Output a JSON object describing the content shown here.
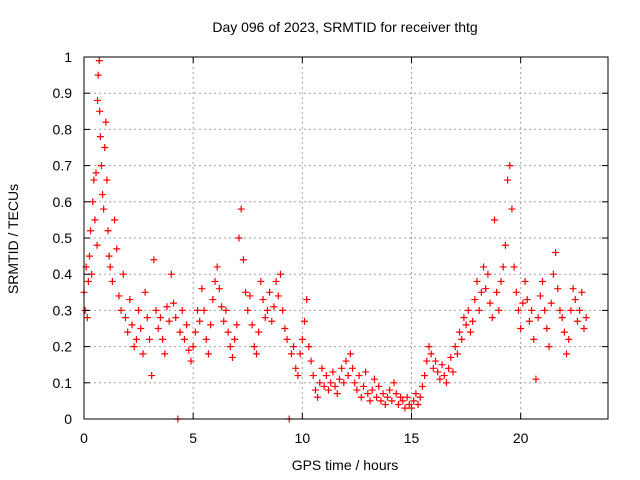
{
  "chart_data": {
    "type": "scatter",
    "title": "Day 096 of 2023, SRMTID for receiver thtg",
    "xlabel": "GPS time / hours",
    "ylabel": "SRMTID / TECUs",
    "xlim": [
      0,
      24
    ],
    "ylim": [
      0,
      1
    ],
    "xticks": [
      0,
      5,
      10,
      15,
      20
    ],
    "yticks": [
      0,
      0.1,
      0.2,
      0.3,
      0.4,
      0.5,
      0.6,
      0.7,
      0.8,
      0.9,
      1
    ],
    "xtick_labels": [
      "0",
      "5",
      "10",
      "15",
      "20"
    ],
    "ytick_labels": [
      "0",
      "0.1",
      "0.2",
      "0.3",
      "0.4",
      "0.5",
      "0.6",
      "0.7",
      "0.8",
      "0.9",
      "1"
    ],
    "grid": true,
    "marker": "+",
    "color": "#ff0000",
    "series": [
      {
        "name": "SRMTID",
        "points": [
          [
            0.0,
            0.35
          ],
          [
            0.05,
            0.3
          ],
          [
            0.1,
            0.42
          ],
          [
            0.15,
            0.28
          ],
          [
            0.2,
            0.38
          ],
          [
            0.25,
            0.45
          ],
          [
            0.3,
            0.52
          ],
          [
            0.35,
            0.4
          ],
          [
            0.4,
            0.6
          ],
          [
            0.45,
            0.66
          ],
          [
            0.5,
            0.55
          ],
          [
            0.55,
            0.68
          ],
          [
            0.6,
            0.48
          ],
          [
            0.62,
            0.88
          ],
          [
            0.65,
            0.95
          ],
          [
            0.7,
            0.99
          ],
          [
            0.72,
            0.85
          ],
          [
            0.75,
            0.78
          ],
          [
            0.8,
            0.7
          ],
          [
            0.85,
            0.62
          ],
          [
            0.9,
            0.58
          ],
          [
            0.95,
            0.75
          ],
          [
            1.0,
            0.82
          ],
          [
            1.05,
            0.66
          ],
          [
            1.1,
            0.52
          ],
          [
            1.15,
            0.45
          ],
          [
            1.2,
            0.42
          ],
          [
            1.3,
            0.38
          ],
          [
            1.4,
            0.55
          ],
          [
            1.5,
            0.47
          ],
          [
            1.6,
            0.34
          ],
          [
            1.7,
            0.3
          ],
          [
            1.8,
            0.4
          ],
          [
            1.9,
            0.28
          ],
          [
            2.0,
            0.24
          ],
          [
            2.1,
            0.33
          ],
          [
            2.2,
            0.26
          ],
          [
            2.3,
            0.2
          ],
          [
            2.4,
            0.22
          ],
          [
            2.5,
            0.3
          ],
          [
            2.6,
            0.25
          ],
          [
            2.7,
            0.18
          ],
          [
            2.8,
            0.35
          ],
          [
            2.9,
            0.28
          ],
          [
            3.0,
            0.22
          ],
          [
            3.1,
            0.12
          ],
          [
            3.2,
            0.44
          ],
          [
            3.3,
            0.3
          ],
          [
            3.4,
            0.25
          ],
          [
            3.5,
            0.28
          ],
          [
            3.6,
            0.22
          ],
          [
            3.7,
            0.18
          ],
          [
            3.8,
            0.31
          ],
          [
            3.9,
            0.27
          ],
          [
            4.0,
            0.4
          ],
          [
            4.1,
            0.32
          ],
          [
            4.2,
            0.28
          ],
          [
            4.3,
            0.0
          ],
          [
            4.4,
            0.24
          ],
          [
            4.5,
            0.3
          ],
          [
            4.6,
            0.22
          ],
          [
            4.7,
            0.26
          ],
          [
            4.8,
            0.19
          ],
          [
            4.9,
            0.16
          ],
          [
            5.0,
            0.2
          ],
          [
            5.1,
            0.24
          ],
          [
            5.2,
            0.3
          ],
          [
            5.3,
            0.27
          ],
          [
            5.4,
            0.36
          ],
          [
            5.5,
            0.3
          ],
          [
            5.6,
            0.22
          ],
          [
            5.7,
            0.18
          ],
          [
            5.8,
            0.26
          ],
          [
            5.9,
            0.33
          ],
          [
            6.0,
            0.38
          ],
          [
            6.1,
            0.42
          ],
          [
            6.2,
            0.36
          ],
          [
            6.3,
            0.31
          ],
          [
            6.4,
            0.27
          ],
          [
            6.5,
            0.3
          ],
          [
            6.6,
            0.24
          ],
          [
            6.7,
            0.2
          ],
          [
            6.8,
            0.17
          ],
          [
            6.9,
            0.22
          ],
          [
            7.0,
            0.26
          ],
          [
            7.1,
            0.5
          ],
          [
            7.2,
            0.58
          ],
          [
            7.3,
            0.44
          ],
          [
            7.4,
            0.35
          ],
          [
            7.5,
            0.3
          ],
          [
            7.6,
            0.34
          ],
          [
            7.7,
            0.26
          ],
          [
            7.8,
            0.2
          ],
          [
            7.9,
            0.18
          ],
          [
            8.0,
            0.24
          ],
          [
            8.1,
            0.38
          ],
          [
            8.2,
            0.33
          ],
          [
            8.3,
            0.28
          ],
          [
            8.4,
            0.3
          ],
          [
            8.5,
            0.35
          ],
          [
            8.6,
            0.27
          ],
          [
            8.7,
            0.31
          ],
          [
            8.8,
            0.38
          ],
          [
            8.9,
            0.34
          ],
          [
            9.0,
            0.4
          ],
          [
            9.1,
            0.3
          ],
          [
            9.2,
            0.25
          ],
          [
            9.3,
            0.22
          ],
          [
            9.4,
            0.0
          ],
          [
            9.5,
            0.18
          ],
          [
            9.6,
            0.2
          ],
          [
            9.7,
            0.14
          ],
          [
            9.8,
            0.12
          ],
          [
            9.9,
            0.18
          ],
          [
            10.0,
            0.22
          ],
          [
            10.1,
            0.27
          ],
          [
            10.2,
            0.33
          ],
          [
            10.3,
            0.2
          ],
          [
            10.4,
            0.16
          ],
          [
            10.5,
            0.12
          ],
          [
            10.6,
            0.08
          ],
          [
            10.7,
            0.06
          ],
          [
            10.8,
            0.1
          ],
          [
            10.9,
            0.14
          ],
          [
            11.0,
            0.09
          ],
          [
            11.1,
            0.12
          ],
          [
            11.2,
            0.08
          ],
          [
            11.3,
            0.1
          ],
          [
            11.4,
            0.13
          ],
          [
            11.5,
            0.09
          ],
          [
            11.6,
            0.07
          ],
          [
            11.7,
            0.11
          ],
          [
            11.8,
            0.14
          ],
          [
            11.9,
            0.1
          ],
          [
            12.0,
            0.16
          ],
          [
            12.1,
            0.12
          ],
          [
            12.2,
            0.18
          ],
          [
            12.3,
            0.14
          ],
          [
            12.4,
            0.1
          ],
          [
            12.5,
            0.08
          ],
          [
            12.6,
            0.12
          ],
          [
            12.7,
            0.06
          ],
          [
            12.8,
            0.09
          ],
          [
            12.9,
            0.13
          ],
          [
            13.0,
            0.07
          ],
          [
            13.1,
            0.05
          ],
          [
            13.2,
            0.08
          ],
          [
            13.3,
            0.11
          ],
          [
            13.4,
            0.06
          ],
          [
            13.5,
            0.09
          ],
          [
            13.6,
            0.05
          ],
          [
            13.7,
            0.07
          ],
          [
            13.8,
            0.04
          ],
          [
            13.9,
            0.06
          ],
          [
            14.0,
            0.08
          ],
          [
            14.1,
            0.05
          ],
          [
            14.2,
            0.1
          ],
          [
            14.3,
            0.07
          ],
          [
            14.4,
            0.04
          ],
          [
            14.5,
            0.06
          ],
          [
            14.6,
            0.05
          ],
          [
            14.7,
            0.03
          ],
          [
            14.8,
            0.06
          ],
          [
            14.9,
            0.04
          ],
          [
            15.0,
            0.03
          ],
          [
            15.1,
            0.05
          ],
          [
            15.2,
            0.07
          ],
          [
            15.3,
            0.04
          ],
          [
            15.4,
            0.06
          ],
          [
            15.5,
            0.09
          ],
          [
            15.6,
            0.12
          ],
          [
            15.7,
            0.16
          ],
          [
            15.8,
            0.2
          ],
          [
            15.9,
            0.18
          ],
          [
            16.0,
            0.14
          ],
          [
            16.1,
            0.16
          ],
          [
            16.2,
            0.13
          ],
          [
            16.3,
            0.11
          ],
          [
            16.4,
            0.15
          ],
          [
            16.5,
            0.12
          ],
          [
            16.6,
            0.1
          ],
          [
            16.7,
            0.14
          ],
          [
            16.8,
            0.17
          ],
          [
            16.9,
            0.13
          ],
          [
            17.0,
            0.2
          ],
          [
            17.1,
            0.18
          ],
          [
            17.2,
            0.24
          ],
          [
            17.3,
            0.22
          ],
          [
            17.4,
            0.28
          ],
          [
            17.5,
            0.26
          ],
          [
            17.6,
            0.3
          ],
          [
            17.7,
            0.24
          ],
          [
            17.8,
            0.27
          ],
          [
            17.9,
            0.33
          ],
          [
            18.0,
            0.38
          ],
          [
            18.1,
            0.3
          ],
          [
            18.2,
            0.35
          ],
          [
            18.3,
            0.42
          ],
          [
            18.4,
            0.36
          ],
          [
            18.5,
            0.4
          ],
          [
            18.6,
            0.32
          ],
          [
            18.7,
            0.28
          ],
          [
            18.8,
            0.55
          ],
          [
            18.9,
            0.35
          ],
          [
            19.0,
            0.3
          ],
          [
            19.1,
            0.38
          ],
          [
            19.2,
            0.42
          ],
          [
            19.3,
            0.48
          ],
          [
            19.4,
            0.66
          ],
          [
            19.5,
            0.7
          ],
          [
            19.6,
            0.58
          ],
          [
            19.7,
            0.42
          ],
          [
            19.8,
            0.35
          ],
          [
            19.9,
            0.3
          ],
          [
            20.0,
            0.25
          ],
          [
            20.1,
            0.32
          ],
          [
            20.2,
            0.38
          ],
          [
            20.3,
            0.33
          ],
          [
            20.4,
            0.27
          ],
          [
            20.5,
            0.3
          ],
          [
            20.6,
            0.22
          ],
          [
            20.7,
            0.11
          ],
          [
            20.8,
            0.28
          ],
          [
            20.9,
            0.34
          ],
          [
            21.0,
            0.38
          ],
          [
            21.1,
            0.3
          ],
          [
            21.2,
            0.25
          ],
          [
            21.3,
            0.2
          ],
          [
            21.4,
            0.32
          ],
          [
            21.5,
            0.4
          ],
          [
            21.6,
            0.46
          ],
          [
            21.7,
            0.36
          ],
          [
            21.8,
            0.3
          ],
          [
            21.9,
            0.28
          ],
          [
            22.0,
            0.24
          ],
          [
            22.1,
            0.18
          ],
          [
            22.2,
            0.22
          ],
          [
            22.3,
            0.3
          ],
          [
            22.4,
            0.36
          ],
          [
            22.5,
            0.33
          ],
          [
            22.6,
            0.27
          ],
          [
            22.7,
            0.3
          ],
          [
            22.8,
            0.35
          ],
          [
            22.9,
            0.25
          ],
          [
            23.0,
            0.28
          ]
        ]
      }
    ]
  }
}
